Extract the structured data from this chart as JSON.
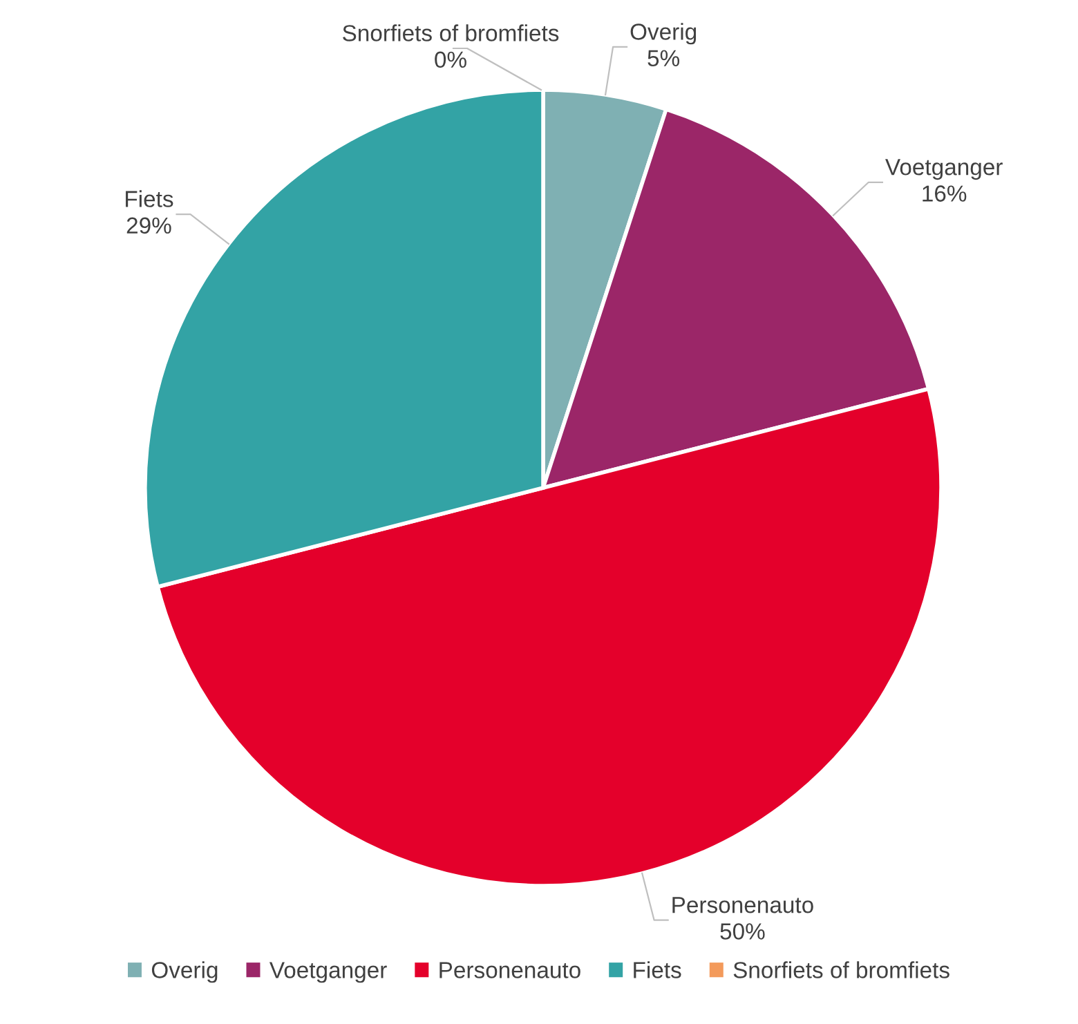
{
  "chart_data": {
    "type": "pie",
    "categories": [
      "Overig",
      "Voetganger",
      "Personenauto",
      "Fiets",
      "Snorfiets of bromfiets"
    ],
    "values": [
      5,
      16,
      50,
      29,
      0
    ],
    "value_labels": [
      "5%",
      "16%",
      "50%",
      "29%",
      "0%"
    ],
    "colors": [
      "#7fb0b3",
      "#9b2668",
      "#e4002b",
      "#33a3a5",
      "#f39a5b"
    ],
    "legend": "bottom"
  }
}
